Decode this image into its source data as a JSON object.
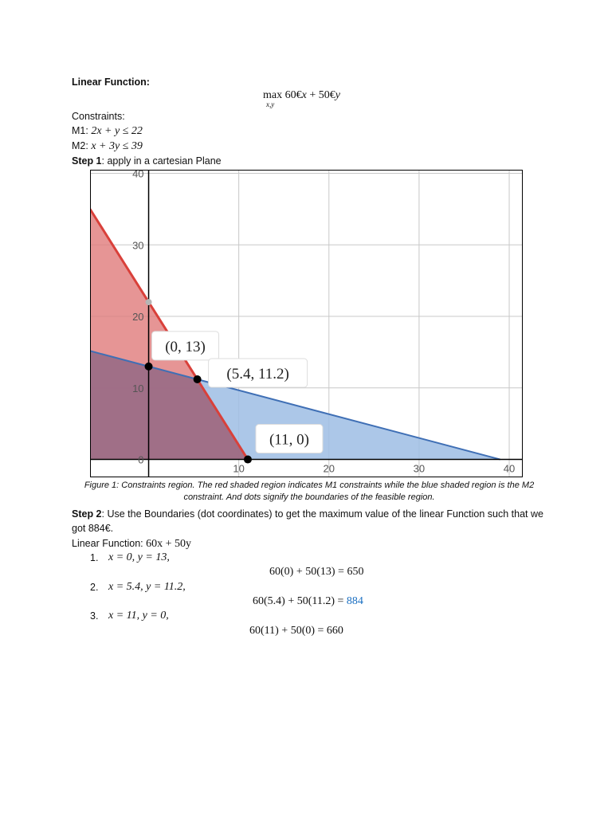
{
  "header": {
    "linear_function_label": "Linear Function:",
    "objective_max": "max 60€",
    "objective_x": "x",
    "objective_plus": " + 50€",
    "objective_y": "y",
    "objective_sub": "x,y",
    "constraints_label": "Constraints:",
    "m1_prefix": "M1: ",
    "m1_expr": "2x + y ≤ 22",
    "m2_prefix": "M2: ",
    "m2_expr": "x + 3y ≤ 39",
    "step1_bold": "Step 1",
    "step1_text": ": apply in a cartesian Plane"
  },
  "chart_data": {
    "type": "area",
    "xlim": [
      -6.5,
      41.5
    ],
    "ylim": [
      -2.5,
      40.5
    ],
    "x_ticks": [
      "10",
      "20",
      "30",
      "40"
    ],
    "y_ticks": [
      "0",
      "10",
      "20",
      "30",
      "40"
    ],
    "grid": true,
    "series": [
      {
        "line": [
          [
            -6.5,
            35
          ],
          [
            11,
            0
          ]
        ],
        "color": "#d9403a",
        "fill": "#e07b7b"
      },
      {
        "line": [
          [
            -6.5,
            15.17
          ],
          [
            39,
            0
          ]
        ],
        "color": "#3f6fb5",
        "fill": "#9dbde4"
      }
    ],
    "points": [
      {
        "x": 0,
        "y": 13,
        "label": "(0, 13)"
      },
      {
        "x": 5.4,
        "y": 11.2,
        "label": "(5.4, 11.2)"
      },
      {
        "x": 11,
        "y": 0,
        "label": "(11, 0)"
      }
    ],
    "gray_point": {
      "x": 0,
      "y": 22
    }
  },
  "caption": {
    "line1": "Figure 1: Constraints region. The red shaded region indicates M1 constraints while the blue shaded region is the M2",
    "line2": "constraint. And dots signify the boundaries of the feasible region."
  },
  "step2": {
    "bold": "Step 2",
    "text": ": Use the Boundaries (dot coordinates) to get the maximum value of the linear Function such that we got 884€.",
    "lf_label": "Linear Function: ",
    "lf_expr": "60x + 50y"
  },
  "items": [
    {
      "num": "1.",
      "cond": "x = 0, y = 13,",
      "calc": "60(0) + 50(13) = 650",
      "result_highlight": ""
    },
    {
      "num": "2.",
      "cond": "x = 5.4, y = 11.2,",
      "calc": "60(5.4) + 50(11.2) = ",
      "result_highlight": "884"
    },
    {
      "num": "3.",
      "cond": "x = 11, y = 0,",
      "calc": "60(11) + 50(0)  =  660",
      "result_highlight": ""
    }
  ]
}
